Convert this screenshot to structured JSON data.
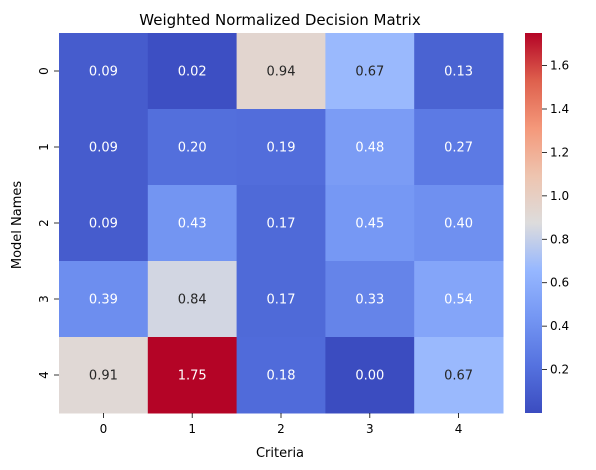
{
  "chart_data": {
    "type": "heatmap",
    "title": "Weighted Normalized Decision Matrix",
    "xlabel": "Criteria",
    "ylabel": "Model Names",
    "x_categories": [
      "0",
      "1",
      "2",
      "3",
      "4"
    ],
    "y_categories": [
      "0",
      "1",
      "2",
      "3",
      "4"
    ],
    "values": [
      [
        0.09,
        0.02,
        0.94,
        0.67,
        0.13
      ],
      [
        0.09,
        0.2,
        0.19,
        0.48,
        0.27
      ],
      [
        0.09,
        0.43,
        0.17,
        0.45,
        0.4
      ],
      [
        0.39,
        0.84,
        0.17,
        0.33,
        0.54
      ],
      [
        0.91,
        1.75,
        0.18,
        0.0,
        0.67
      ]
    ],
    "value_labels": [
      [
        "0.09",
        "0.02",
        "0.94",
        "0.67",
        "0.13"
      ],
      [
        "0.09",
        "0.20",
        "0.19",
        "0.48",
        "0.27"
      ],
      [
        "0.09",
        "0.43",
        "0.17",
        "0.45",
        "0.40"
      ],
      [
        "0.39",
        "0.84",
        "0.17",
        "0.33",
        "0.54"
      ],
      [
        "0.91",
        "1.75",
        "0.18",
        "0.00",
        "0.67"
      ]
    ],
    "colormap": "coolwarm",
    "color_range": [
      0.0,
      1.75
    ],
    "colorbar": {
      "position": "right",
      "ticks": [
        0.2,
        0.4,
        0.6,
        0.8,
        1.0,
        1.2,
        1.4,
        1.6
      ],
      "tick_labels": [
        "0.2",
        "0.4",
        "0.6",
        "0.8",
        "1.0",
        "1.2",
        "1.4",
        "1.6"
      ]
    },
    "colors": {
      "low": "#3b4cc0",
      "mid": "#dddcdc",
      "high": "#b40426",
      "text_dark": "#262626",
      "text_light": "#ffffff"
    }
  }
}
